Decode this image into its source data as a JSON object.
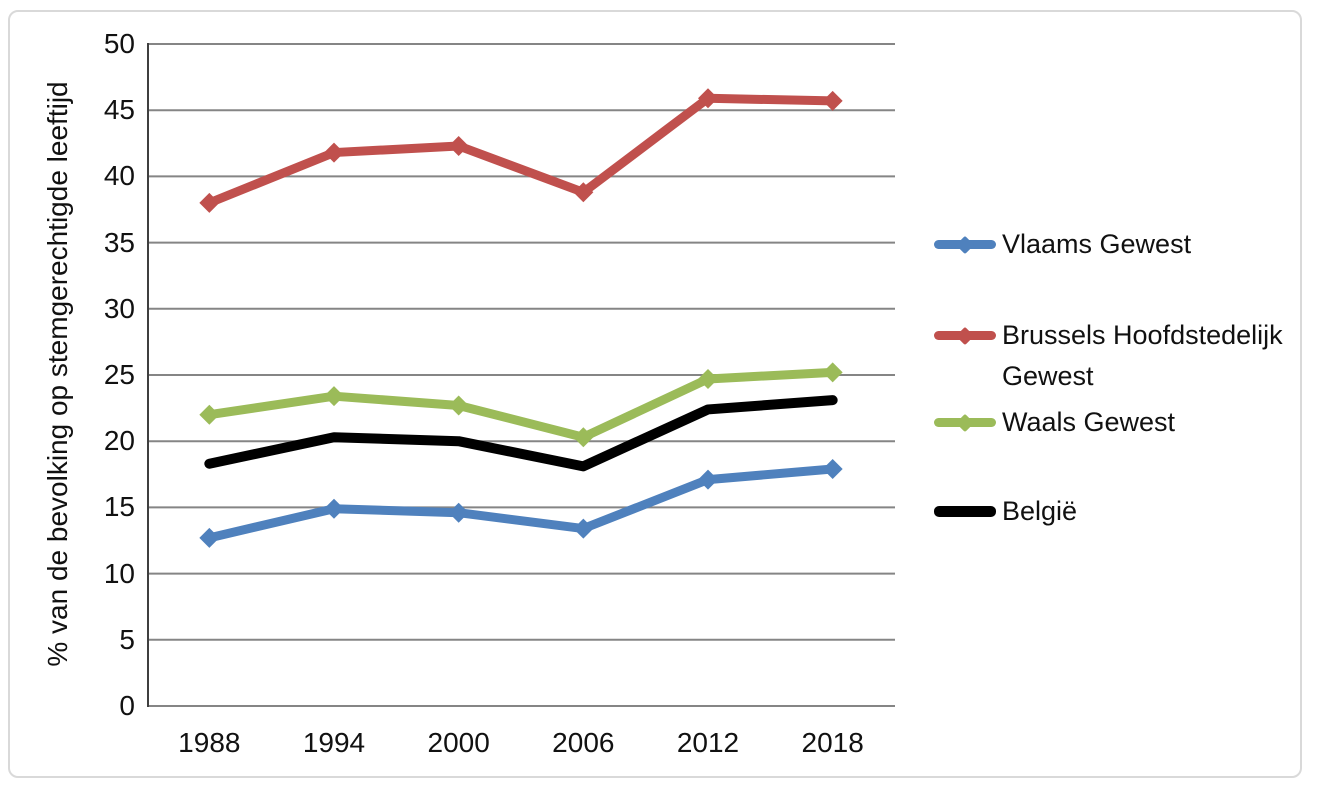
{
  "chart_data": {
    "type": "line",
    "title": "",
    "xlabel": "",
    "ylabel": "% van de bevolking op stemgerechtigde leeftijd",
    "categories": [
      "1988",
      "1994",
      "2000",
      "2006",
      "2012",
      "2018"
    ],
    "series": [
      {
        "name": "Vlaams Gewest",
        "color": "#4f81bd",
        "marker": "diamond",
        "values": [
          12.7,
          14.9,
          14.6,
          13.4,
          17.1,
          17.9
        ]
      },
      {
        "name": "Brussels Hoofdstedelijk Gewest",
        "color": "#c0504d",
        "marker": "diamond",
        "values": [
          38.0,
          41.8,
          42.3,
          38.8,
          45.9,
          45.7
        ]
      },
      {
        "name": "Waals Gewest",
        "color": "#9bbb59",
        "marker": "diamond",
        "values": [
          22.0,
          23.4,
          22.7,
          20.3,
          24.7,
          25.2
        ]
      },
      {
        "name": "België",
        "color": "#000000",
        "marker": "none",
        "values": [
          18.3,
          20.3,
          20.0,
          18.1,
          22.4,
          23.1
        ]
      }
    ],
    "ylim": [
      0,
      50
    ],
    "ytick_step": 5,
    "ytick_labels": [
      "0",
      "5",
      "10",
      "15",
      "20",
      "25",
      "30",
      "35",
      "40",
      "45",
      "50"
    ],
    "grid": true,
    "legend_position": "right"
  },
  "style_colors": {
    "gridline": "#858585",
    "axis": "#3f3f3f",
    "frame": "#d9d9d9",
    "text": "#111111",
    "background": "#ffffff"
  }
}
